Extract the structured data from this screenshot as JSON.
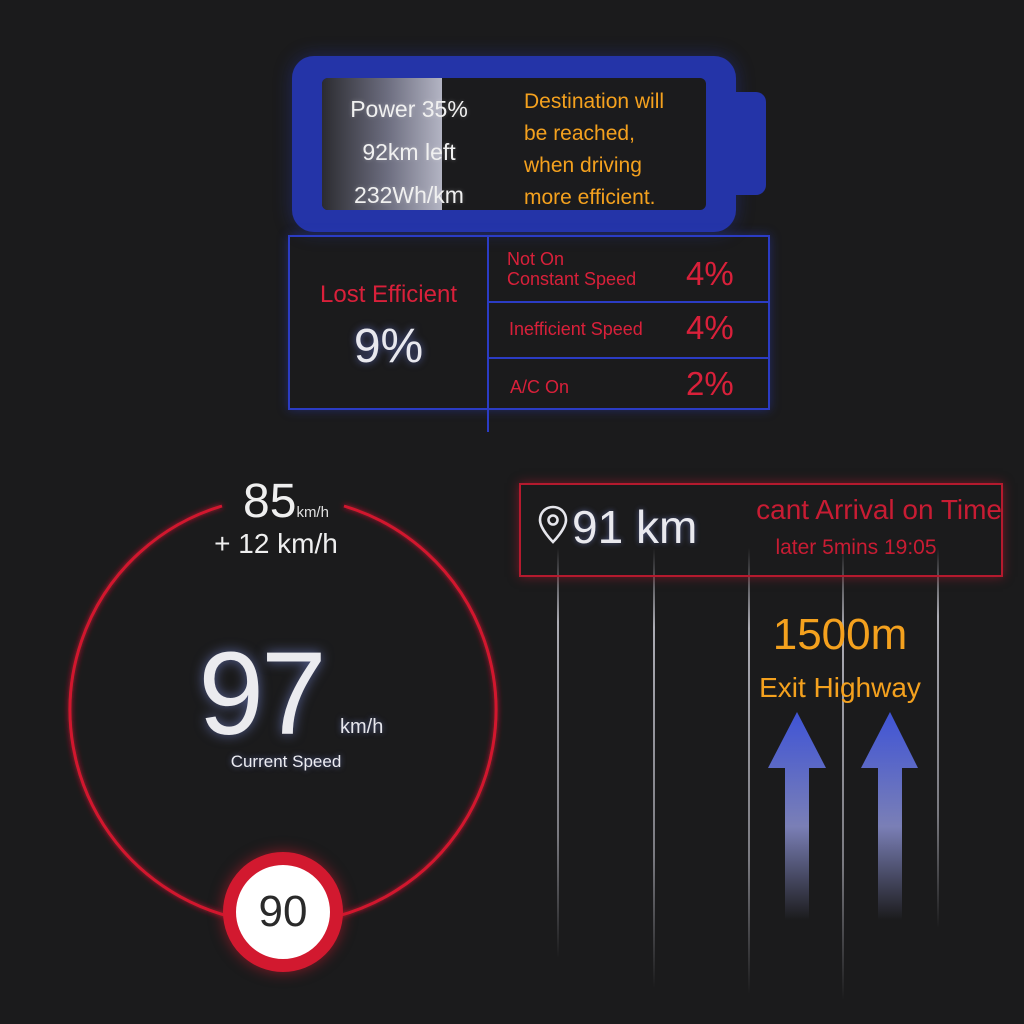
{
  "battery": {
    "power": "Power 35%",
    "range": "92km left",
    "consumption": "232Wh/km",
    "level_percent": 35,
    "message_lines": [
      "Destination will",
      "be reached,",
      "when driving",
      "more efficient."
    ]
  },
  "efficiency": {
    "title": "Lost Efficient",
    "total": "9%",
    "items": [
      {
        "label_lines": [
          "Not On",
          "Constant Speed"
        ],
        "value": "4%"
      },
      {
        "label_lines": [
          "Inefficient Speed"
        ],
        "value": "4%"
      },
      {
        "label_lines": [
          "A/C On"
        ],
        "value": "2%"
      }
    ]
  },
  "speedometer": {
    "target_speed": "85",
    "target_unit": "km/h",
    "delta": "+ 12 km/h",
    "current_speed": "97",
    "current_unit": "km/h",
    "current_label": "Current Speed",
    "speed_limit": "90"
  },
  "navigation": {
    "distance": "91 km",
    "status": "cant Arrival on Time",
    "eta": "later 5mins 19:05",
    "next_maneuver_distance": "1500m",
    "next_maneuver": "Exit Highway"
  },
  "colors": {
    "accent_blue": "#2434a8",
    "alert_red": "#d9203a",
    "highlight_orange": "#f4a11e",
    "background": "#1b1b1c"
  }
}
